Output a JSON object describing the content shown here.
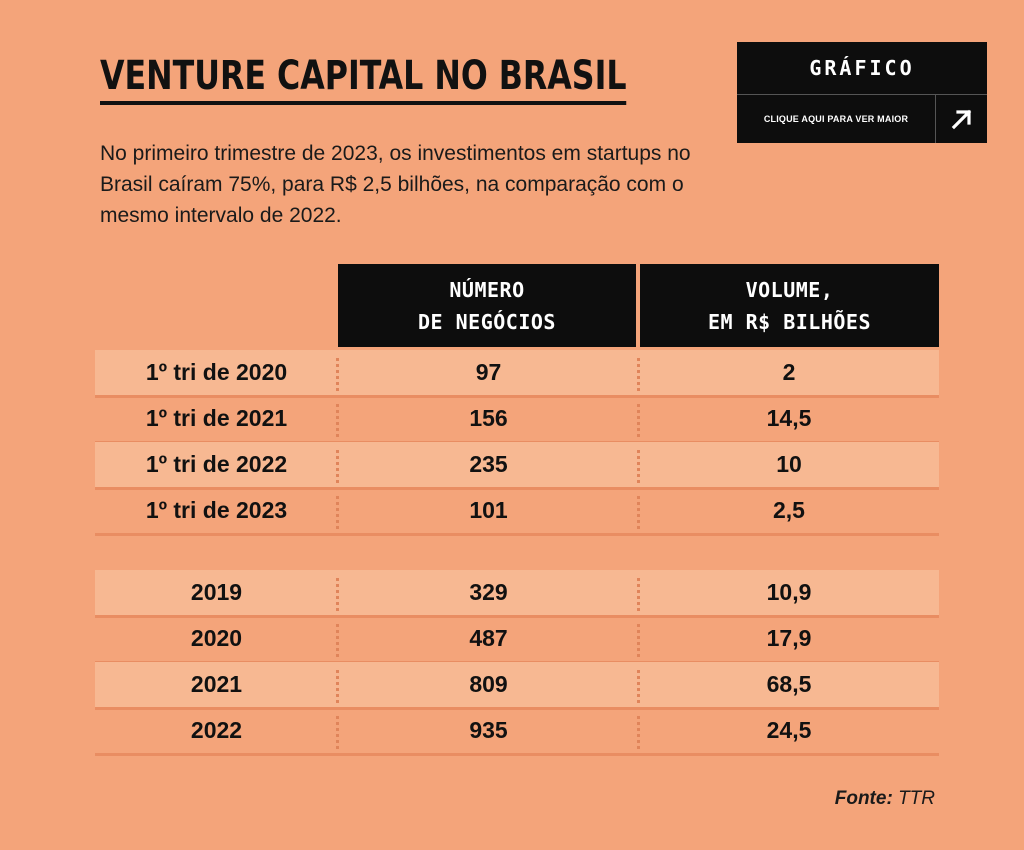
{
  "title": "VENTURE CAPITAL NO BRASIL",
  "subtitle": "No primeiro trimestre de 2023, os investimentos em startups no Brasil caíram 75%, para R$ 2,5 bilhões, na comparação com o mesmo intervalo de 2022.",
  "badge": {
    "title": "GRÁFICO",
    "link": "CLIQUE AQUI PARA VER MAIOR",
    "icon": "arrow-up-right-icon"
  },
  "columns": {
    "deals_line1": "NÚMERO",
    "deals_line2": "DE NEGÓCIOS",
    "volume_line1": "VOLUME,",
    "volume_line2": "EM R$ BILHÕES"
  },
  "source": {
    "label": "Fonte:",
    "value": "TTR"
  },
  "colors": {
    "background": "#f4a47a",
    "row_light": "#f7b892",
    "header": "#0d0d0d"
  },
  "chart_data": {
    "type": "table",
    "columns": [
      "",
      "NÚMERO DE NEGÓCIOS",
      "VOLUME, EM R$ BILHÕES"
    ],
    "quarterly": [
      {
        "period": "1º tri de 2020",
        "deals": "97",
        "volume": "2"
      },
      {
        "period": "1º tri de 2021",
        "deals": "156",
        "volume": "14,5"
      },
      {
        "period": "1º tri de 2022",
        "deals": "235",
        "volume": "10"
      },
      {
        "period": "1º tri de 2023",
        "deals": "101",
        "volume": "2,5"
      }
    ],
    "annual": [
      {
        "period": "2019",
        "deals": "329",
        "volume": "10,9"
      },
      {
        "period": "2020",
        "deals": "487",
        "volume": "17,9"
      },
      {
        "period": "2021",
        "deals": "809",
        "volume": "68,5"
      },
      {
        "period": "2022",
        "deals": "935",
        "volume": "24,5"
      }
    ]
  }
}
